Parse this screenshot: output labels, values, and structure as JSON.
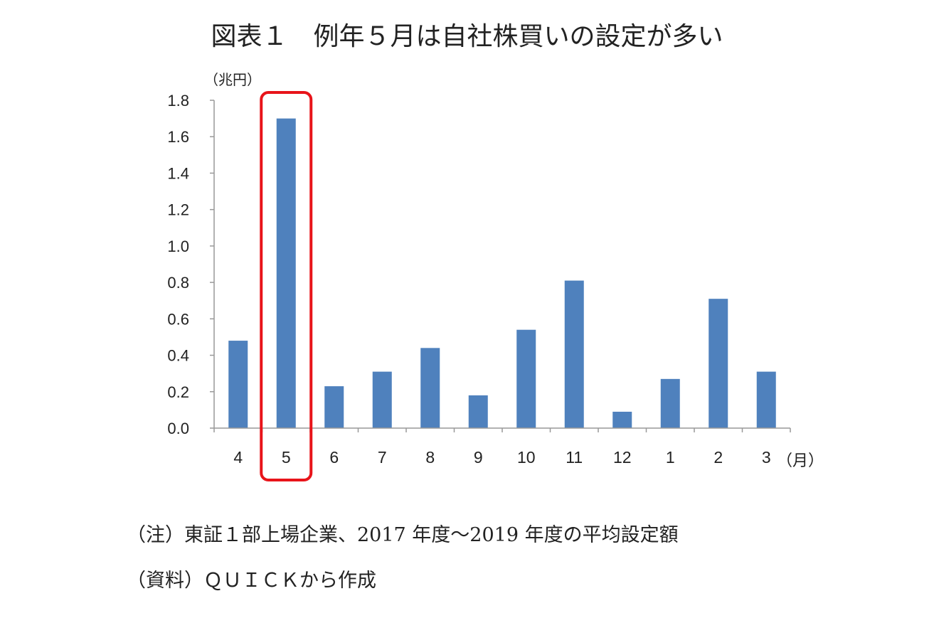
{
  "title": "図表１　例年５月は自社株買いの設定が多い",
  "y_unit": "（兆円）",
  "x_unit": "（月）",
  "notes": {
    "note": "（注）東証１部上場企業、2017 年度～2019 年度の平均設定額",
    "source": "（資料）ＱＵＩＣＫから作成"
  },
  "colors": {
    "bar": "#4f81bd",
    "highlight": "#e8141a",
    "axis": "#999999"
  },
  "chart_data": {
    "type": "bar",
    "categories": [
      "4",
      "5",
      "6",
      "7",
      "8",
      "9",
      "10",
      "11",
      "12",
      "1",
      "2",
      "3"
    ],
    "values": [
      0.48,
      1.7,
      0.23,
      0.31,
      0.44,
      0.18,
      0.54,
      0.81,
      0.09,
      0.27,
      0.71,
      0.31
    ],
    "ylim": [
      0,
      1.8
    ],
    "yticks": [
      "0.0",
      "0.2",
      "0.4",
      "0.6",
      "0.8",
      "1.0",
      "1.2",
      "1.4",
      "1.6",
      "1.8"
    ],
    "highlighted_category": "5",
    "grid": false
  }
}
